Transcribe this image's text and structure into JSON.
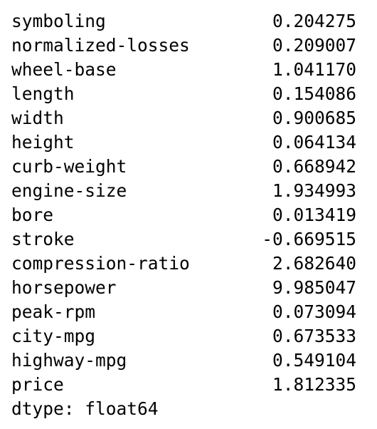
{
  "series": [
    {
      "label": "symboling",
      "value": "0.204275"
    },
    {
      "label": "normalized-losses",
      "value": "0.209007"
    },
    {
      "label": "wheel-base",
      "value": "1.041170"
    },
    {
      "label": "length",
      "value": "0.154086"
    },
    {
      "label": "width",
      "value": "0.900685"
    },
    {
      "label": "height",
      "value": "0.064134"
    },
    {
      "label": "curb-weight",
      "value": "0.668942"
    },
    {
      "label": "engine-size",
      "value": "1.934993"
    },
    {
      "label": "bore",
      "value": "0.013419"
    },
    {
      "label": "stroke",
      "value": "-0.669515"
    },
    {
      "label": "compression-ratio",
      "value": "2.682640"
    },
    {
      "label": "horsepower",
      "value": "9.985047"
    },
    {
      "label": "peak-rpm",
      "value": "0.073094"
    },
    {
      "label": "city-mpg",
      "value": "0.673533"
    },
    {
      "label": "highway-mpg",
      "value": "0.549104"
    },
    {
      "label": "price",
      "value": "1.812335"
    }
  ],
  "dtype_line": "dtype: float64"
}
